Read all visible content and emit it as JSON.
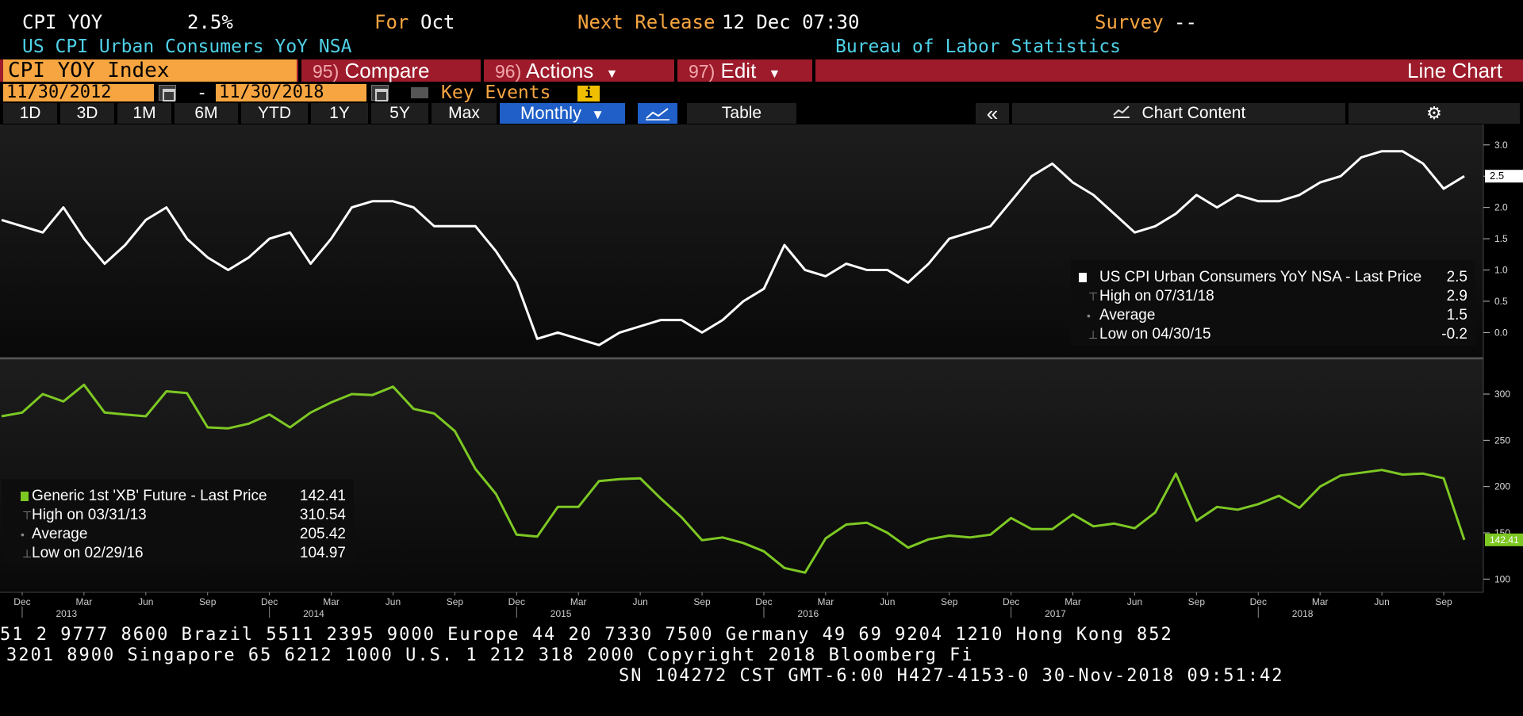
{
  "header": {
    "ticker": "CPI YOY",
    "last": "2.5%",
    "for_label": "For",
    "for_value": "Oct",
    "next_release_label": "Next Release",
    "next_release_value": "12 Dec 07:30",
    "survey_label": "Survey",
    "survey_value": "--",
    "description": "US CPI Urban Consumers YoY NSA",
    "source": "Bureau of Labor Statistics"
  },
  "function_bar": {
    "security": "CPI YOY Index",
    "compare_num": "95)",
    "compare_label": "Compare",
    "actions_num": "96)",
    "actions_label": "Actions",
    "edit_num": "97)",
    "edit_label": "Edit",
    "chart_type": "Line Chart"
  },
  "date_bar": {
    "start": "11/30/2012",
    "dash": "-",
    "end": "11/30/2018",
    "key_events": "Key Events",
    "info": "i"
  },
  "range_bar": {
    "buttons": [
      "1D",
      "3D",
      "1M",
      "6M",
      "YTD",
      "1Y",
      "5Y",
      "Max"
    ],
    "period": "Monthly",
    "table": "Table",
    "collapse": "«",
    "chart_content": "Chart Content"
  },
  "colors": {
    "accent_orange": "#f7a540",
    "cyan": "#4fd1e8",
    "function_bar": "#9d1b2b",
    "series1": "#ffffff",
    "series2": "#7dc823",
    "selected_button": "#1f5fc7"
  },
  "chart_data": [
    {
      "type": "line",
      "x_start": "2012-11",
      "x_end": "2018-10",
      "frequency": "monthly",
      "ylim": [
        -0.35,
        3.2
      ],
      "yticks": [
        "3.0",
        "2.5",
        "2.0",
        "1.5",
        "1.0",
        "0.5",
        "0.0"
      ],
      "last_label": "2.5",
      "series": [
        {
          "name": "US CPI Urban Consumers YoY NSA",
          "values": [
            1.8,
            1.7,
            1.6,
            2.0,
            1.5,
            1.1,
            1.4,
            1.8,
            2.0,
            1.5,
            1.2,
            1.0,
            1.2,
            1.5,
            1.6,
            1.1,
            1.5,
            2.0,
            2.1,
            2.1,
            2.0,
            1.7,
            1.7,
            1.7,
            1.3,
            0.8,
            -0.1,
            0.0,
            -0.1,
            -0.2,
            0.0,
            0.1,
            0.2,
            0.2,
            0.0,
            0.2,
            0.5,
            0.7,
            1.4,
            1.0,
            0.9,
            1.1,
            1.0,
            1.0,
            0.8,
            1.1,
            1.5,
            1.6,
            1.7,
            2.1,
            2.5,
            2.7,
            2.4,
            2.2,
            1.9,
            1.6,
            1.7,
            1.9,
            2.2,
            2.0,
            2.2,
            2.1,
            2.1,
            2.2,
            2.4,
            2.5,
            2.8,
            2.9,
            2.9,
            2.7,
            2.3,
            2.5
          ]
        }
      ],
      "legend": {
        "title": "US CPI Urban Consumers YoY NSA - Last Price",
        "last": "2.5",
        "high_label": "High on 07/31/18",
        "high": "2.9",
        "avg_label": "Average",
        "avg": "1.5",
        "low_label": "Low on 04/30/15",
        "low": "-0.2",
        "position": "bottom-right"
      }
    },
    {
      "type": "line",
      "x_start": "2012-11",
      "x_end": "2018-10",
      "frequency": "monthly",
      "ylim": [
        90,
        330
      ],
      "yticks": [
        "300",
        "250",
        "200",
        "150",
        "100"
      ],
      "last_label": "142.41",
      "series": [
        {
          "name": "Generic 1st 'XB' Future",
          "values": [
            276,
            280,
            300,
            292,
            310,
            280,
            278,
            276,
            303,
            301,
            264,
            263,
            268,
            278,
            264,
            280,
            291,
            300,
            299,
            308,
            284,
            279,
            260,
            219,
            192,
            148,
            146,
            178,
            178,
            206,
            208,
            209,
            187,
            167,
            142,
            145,
            139,
            130,
            112,
            107,
            144,
            159,
            161,
            150,
            134,
            143,
            147,
            145,
            148,
            166,
            154,
            154,
            170,
            157,
            160,
            155,
            172,
            214,
            163,
            178,
            175,
            181,
            190,
            177,
            200,
            212,
            215,
            218,
            213,
            214,
            209,
            142.41
          ]
        }
      ],
      "legend": {
        "title": "Generic 1st 'XB' Future - Last Price",
        "last": "142.41",
        "high_label": "High on 03/31/13",
        "high": "310.54",
        "avg_label": "Average",
        "avg": "205.42",
        "low_label": "Low on 02/29/16",
        "low": "104.97",
        "position": "bottom-left"
      }
    }
  ],
  "x_axis": {
    "months": [
      "Dec",
      "Mar",
      "Jun",
      "Sep",
      "Dec",
      "Mar",
      "Jun",
      "Sep",
      "Dec",
      "Mar",
      "Jun",
      "Sep",
      "Dec",
      "Mar",
      "Jun",
      "Sep",
      "Dec",
      "Mar",
      "Jun",
      "Sep",
      "Dec",
      "Mar",
      "Jun",
      "Sep"
    ],
    "years": [
      "2013",
      "2014",
      "2015",
      "2016",
      "2017",
      "2018"
    ]
  },
  "footer": {
    "line1": "51 2 9777 8600 Brazil 5511 2395 9000 Europe 44 20 7330 7500 Germany 49 69 9204 1210 Hong Kong 852",
    "line2": "3201 8900       Singapore 65 6212 1000      U.S. 1 212 318 2000        Copyright 2018 Bloomberg Fi",
    "line3": "SN 104272 CST  GMT-6:00 H427-4153-0 30-Nov-2018 09:51:42"
  }
}
